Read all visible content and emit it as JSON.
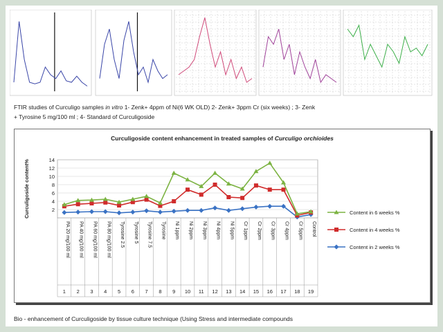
{
  "figure1": {
    "caption_line1_prefix": "FTIR   studies of Curculigo samples ",
    "caption_line1_italic": "in vitro",
    "caption_line1_suffix": " 1- Zenk+ 4ppm of Ni(6 WK OLD)   2- Zenk+ 3ppm Cr (six weeks) ; 3- Zenk",
    "caption_line2": "+ Tyrosine 5 mg/100 ml ;  4-  Standard of Curculigoside"
  },
  "spectra_colors": [
    "#3a46a8",
    "#3a46a8",
    "#d04a7a",
    "#a0429a",
    "#3db04a"
  ],
  "chart_data": {
    "type": "line",
    "title_prefix": "Curculigoside content enhancement in treated samples of ",
    "title_italic": "Curculigo orchioides",
    "ylabel": "Curculigoside  content%",
    "ylim": [
      0,
      14
    ],
    "yticks": [
      2,
      4,
      6,
      8,
      10,
      12,
      14
    ],
    "categories": [
      "PA 20 mg/100 ml",
      "PA 40 mg/100 ml",
      "PA 60 mg/100 ml",
      "PA 80 mg/100 ml",
      "Tyrosine 2.5",
      "Tyrosine 5",
      "Tyrosine 7.5",
      "Tyrosine",
      "Ni 1ppm",
      "Ni 2ppm",
      "Ni 3ppm",
      "Ni 4ppm",
      "Ni 5ppm",
      "Cr 1ppm",
      "Cr 2ppm",
      "Cr 3ppm",
      "Cr 4ppm",
      "Cr 5ppm",
      "Control"
    ],
    "index_labels": [
      "1",
      "2",
      "3",
      "4",
      "5",
      "6",
      "7",
      "8",
      "9",
      "10",
      "11",
      "12",
      "13",
      "14",
      "15",
      "16",
      "17",
      "18",
      "19"
    ],
    "series": [
      {
        "name": "Content in 6 weeks %",
        "color": "#7cb342",
        "marker": "triangle",
        "values": [
          3.2,
          4.2,
          4.3,
          4.5,
          3.8,
          4.5,
          5.2,
          3.6,
          10.8,
          9.2,
          7.6,
          10.8,
          8.2,
          7.0,
          11.2,
          13.2,
          8.5,
          1.0,
          1.5
        ]
      },
      {
        "name": "Content in 4 weeks %",
        "color": "#d02c2c",
        "marker": "square",
        "values": [
          2.8,
          3.3,
          3.5,
          3.7,
          3.0,
          3.8,
          4.4,
          2.9,
          4.0,
          6.8,
          5.6,
          8.0,
          5.0,
          4.8,
          7.8,
          6.8,
          6.8,
          0.6,
          1.3
        ]
      },
      {
        "name": "Content in 2 weeks %",
        "color": "#3a72c4",
        "marker": "diamond",
        "values": [
          1.3,
          1.4,
          1.5,
          1.5,
          1.2,
          1.4,
          1.7,
          1.4,
          1.6,
          1.8,
          1.8,
          2.4,
          1.8,
          2.2,
          2.6,
          2.8,
          2.8,
          0.2,
          0.8
        ]
      }
    ]
  },
  "figure2": {
    "caption": "Bio -  enhancement of Curculigoside by tissue culture technique (Using Stress  and intermediate compounds"
  }
}
